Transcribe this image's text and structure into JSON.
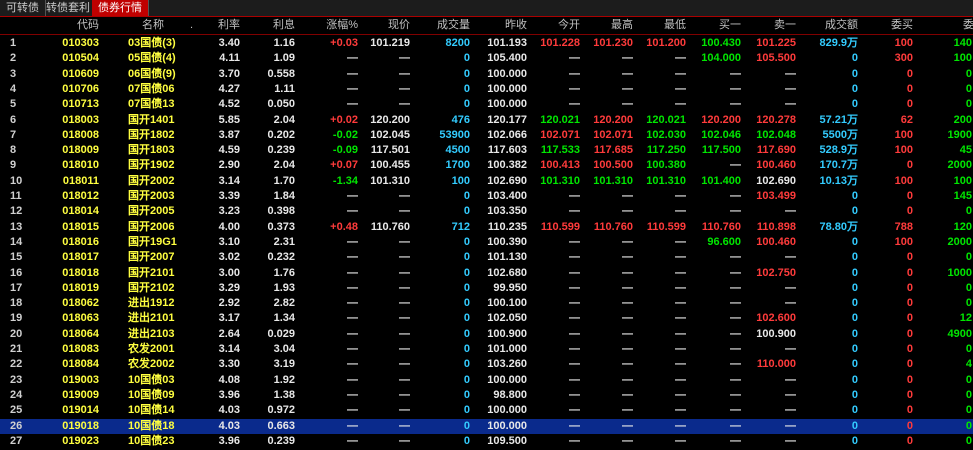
{
  "tabs": [
    "可转债",
    "转债套利",
    "债券行情"
  ],
  "table": {
    "header": [
      "代码",
      "名称",
      ".",
      "利率",
      "利息",
      "涨幅%",
      "现价",
      "成交量",
      "昨收",
      "今开",
      "最高",
      "最低",
      "买一",
      "卖一",
      "成交额",
      "委买",
      "委卖"
    ],
    "rows": [
      [
        "1",
        "010303",
        "03国债(3)",
        "3.40",
        "1.16",
        "+0.03",
        "101.219",
        "8200",
        "101.193",
        "101.228",
        "101.230",
        "101.200",
        "100.430",
        "101.225",
        "829.9万",
        "100",
        "140"
      ],
      [
        "2",
        "010504",
        "05国债(4)",
        "4.11",
        "1.09",
        "—",
        "—",
        "0",
        "105.400",
        "—",
        "—",
        "—",
        "104.000",
        "105.500",
        "0",
        "300",
        "100"
      ],
      [
        "3",
        "010609",
        "06国债(9)",
        "3.70",
        "0.558",
        "—",
        "—",
        "0",
        "100.000",
        "—",
        "—",
        "—",
        "—",
        "—",
        "0",
        "0",
        "0"
      ],
      [
        "4",
        "010706",
        "07国债06",
        "4.27",
        "1.11",
        "—",
        "—",
        "0",
        "100.000",
        "—",
        "—",
        "—",
        "—",
        "—",
        "0",
        "0",
        "0"
      ],
      [
        "5",
        "010713",
        "07国债13",
        "4.52",
        "0.050",
        "—",
        "—",
        "0",
        "100.000",
        "—",
        "—",
        "—",
        "—",
        "—",
        "0",
        "0",
        "0"
      ],
      [
        "6",
        "018003",
        "国开1401",
        "5.85",
        "2.04",
        "+0.02",
        "120.200",
        "476",
        "120.177",
        "120.021",
        "120.200",
        "120.021",
        "120.200",
        "120.278",
        "57.21万",
        "62",
        "200"
      ],
      [
        "7",
        "018008",
        "国开1802",
        "3.87",
        "0.202",
        "-0.02",
        "102.045",
        "53900",
        "102.066",
        "102.071",
        "102.071",
        "102.030",
        "102.046",
        "102.048",
        "5500万",
        "100",
        "1900"
      ],
      [
        "8",
        "018009",
        "国开1803",
        "4.59",
        "0.239",
        "-0.09",
        "117.501",
        "4500",
        "117.603",
        "117.533",
        "117.685",
        "117.250",
        "117.500",
        "117.690",
        "528.9万",
        "100",
        "45"
      ],
      [
        "9",
        "018010",
        "国开1902",
        "2.90",
        "2.04",
        "+0.07",
        "100.455",
        "1700",
        "100.382",
        "100.413",
        "100.500",
        "100.380",
        "—",
        "100.460",
        "170.7万",
        "0",
        "2000"
      ],
      [
        "10",
        "018011",
        "国开2002",
        "3.14",
        "1.70",
        "-1.34",
        "101.310",
        "100",
        "102.690",
        "101.310",
        "101.310",
        "101.310",
        "101.400",
        "102.690",
        "10.13万",
        "100",
        "100"
      ],
      [
        "11",
        "018012",
        "国开2003",
        "3.39",
        "1.84",
        "—",
        "—",
        "0",
        "103.400",
        "—",
        "—",
        "—",
        "—",
        "103.499",
        "0",
        "0",
        "145"
      ],
      [
        "12",
        "018014",
        "国开2005",
        "3.23",
        "0.398",
        "—",
        "—",
        "0",
        "103.350",
        "—",
        "—",
        "—",
        "—",
        "—",
        "0",
        "0",
        "0"
      ],
      [
        "13",
        "018015",
        "国开2006",
        "4.00",
        "0.373",
        "+0.48",
        "110.760",
        "712",
        "110.235",
        "110.599",
        "110.760",
        "110.599",
        "110.760",
        "110.898",
        "78.80万",
        "788",
        "120"
      ],
      [
        "14",
        "018016",
        "国开19G1",
        "3.10",
        "2.31",
        "—",
        "—",
        "0",
        "100.390",
        "—",
        "—",
        "—",
        "96.600",
        "100.460",
        "0",
        "100",
        "2000"
      ],
      [
        "15",
        "018017",
        "国开2007",
        "3.02",
        "0.232",
        "—",
        "—",
        "0",
        "101.130",
        "—",
        "—",
        "—",
        "—",
        "—",
        "0",
        "0",
        "0"
      ],
      [
        "16",
        "018018",
        "国开2101",
        "3.00",
        "1.76",
        "—",
        "—",
        "0",
        "102.680",
        "—",
        "—",
        "—",
        "—",
        "102.750",
        "0",
        "0",
        "1000"
      ],
      [
        "17",
        "018019",
        "国开2102",
        "3.29",
        "1.93",
        "—",
        "—",
        "0",
        "99.950",
        "—",
        "—",
        "—",
        "—",
        "—",
        "0",
        "0",
        "0"
      ],
      [
        "18",
        "018062",
        "进出1912",
        "2.92",
        "2.82",
        "—",
        "—",
        "0",
        "100.100",
        "—",
        "—",
        "—",
        "—",
        "—",
        "0",
        "0",
        "0"
      ],
      [
        "19",
        "018063",
        "进出2101",
        "3.17",
        "1.34",
        "—",
        "—",
        "0",
        "102.050",
        "—",
        "—",
        "—",
        "—",
        "102.600",
        "0",
        "0",
        "12"
      ],
      [
        "20",
        "018064",
        "进出2103",
        "2.64",
        "0.029",
        "—",
        "—",
        "0",
        "100.900",
        "—",
        "—",
        "—",
        "—",
        "100.900",
        "0",
        "0",
        "4900"
      ],
      [
        "21",
        "018083",
        "农发2001",
        "3.14",
        "3.04",
        "—",
        "—",
        "0",
        "101.000",
        "—",
        "—",
        "—",
        "—",
        "—",
        "0",
        "0",
        "0"
      ],
      [
        "22",
        "018084",
        "农发2002",
        "3.30",
        "3.19",
        "—",
        "—",
        "0",
        "103.260",
        "—",
        "—",
        "—",
        "—",
        "110.000",
        "0",
        "0",
        "4"
      ],
      [
        "23",
        "019003",
        "10国债03",
        "4.08",
        "1.92",
        "—",
        "—",
        "0",
        "100.000",
        "—",
        "—",
        "—",
        "—",
        "—",
        "0",
        "0",
        "0"
      ],
      [
        "24",
        "019009",
        "10国债09",
        "3.96",
        "1.38",
        "—",
        "—",
        "0",
        "98.800",
        "—",
        "—",
        "—",
        "—",
        "—",
        "0",
        "0",
        "0"
      ],
      [
        "25",
        "019014",
        "10国债14",
        "4.03",
        "0.972",
        "—",
        "—",
        "0",
        "100.000",
        "—",
        "—",
        "—",
        "—",
        "—",
        "0",
        "0",
        "0"
      ],
      [
        "26",
        "019018",
        "10国债18",
        "4.03",
        "0.663",
        "—",
        "—",
        "0",
        "100.000",
        "—",
        "—",
        "—",
        "—",
        "—",
        "0",
        "0",
        "0"
      ],
      [
        "27",
        "019023",
        "10国债23",
        "3.96",
        "0.239",
        "—",
        "—",
        "0",
        "109.500",
        "—",
        "—",
        "—",
        "—",
        "—",
        "0",
        "0",
        "0"
      ]
    ]
  }
}
